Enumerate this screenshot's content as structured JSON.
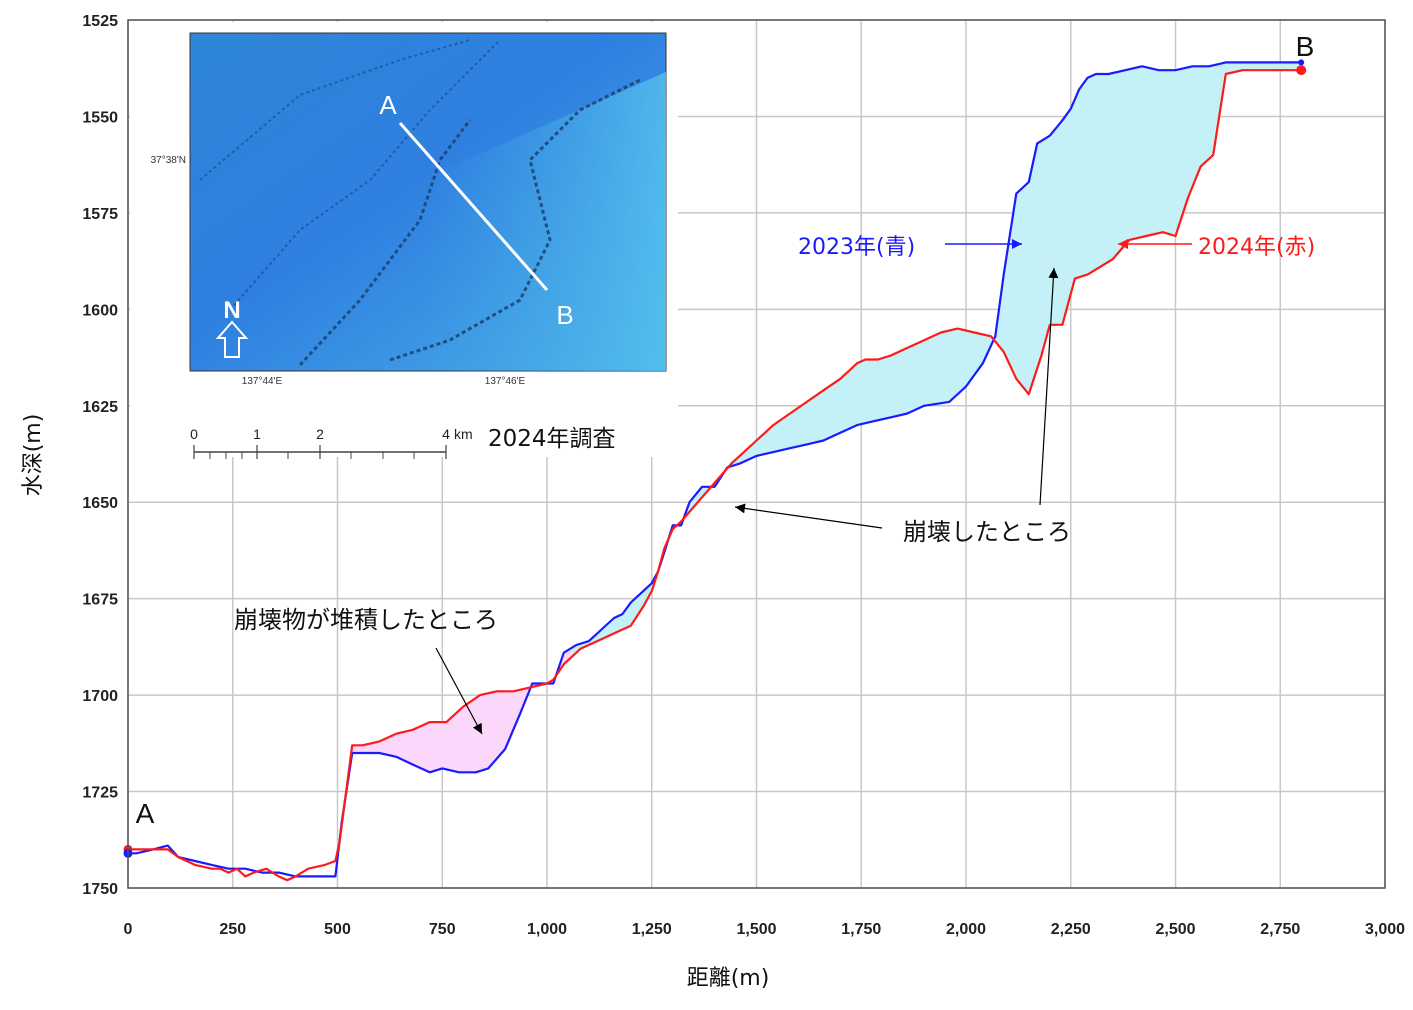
{
  "chart_data": {
    "type": "line",
    "xlabel": "距離(m)",
    "ylabel": "水深(m)",
    "xlim": [
      0,
      3000
    ],
    "ylim": [
      1750,
      1525
    ],
    "y_inverted": true,
    "grid": true,
    "x_ticks": [
      "0",
      "250",
      "500",
      "750",
      "1,000",
      "1,250",
      "1,500",
      "1,750",
      "2,000",
      "2,250",
      "2,500",
      "2,750",
      "3,000"
    ],
    "x_tick_values": [
      0,
      250,
      500,
      750,
      1000,
      1250,
      1500,
      1750,
      2000,
      2250,
      2500,
      2750,
      3000
    ],
    "y_ticks": [
      "1525",
      "1550",
      "1575",
      "1600",
      "1625",
      "1650",
      "1675",
      "1700",
      "1725",
      "1750"
    ],
    "y_tick_values": [
      1525,
      1550,
      1575,
      1600,
      1625,
      1650,
      1675,
      1700,
      1725,
      1750
    ],
    "series": [
      {
        "name": "2023年(青)",
        "color": "#1a1aff",
        "x": [
          0,
          20,
          60,
          95,
          120,
          160,
          200,
          240,
          280,
          320,
          360,
          400,
          440,
          480,
          495,
          510,
          535,
          600,
          640,
          680,
          720,
          750,
          790,
          830,
          860,
          900,
          935,
          965,
          1000,
          1015,
          1040,
          1070,
          1100,
          1130,
          1160,
          1180,
          1200,
          1220,
          1250,
          1265,
          1280,
          1300,
          1320,
          1340,
          1370,
          1400,
          1430,
          1460,
          1500,
          1540,
          1580,
          1620,
          1660,
          1700,
          1740,
          1780,
          1820,
          1860,
          1900,
          1960,
          2000,
          2040,
          2070,
          2090,
          2120,
          2150,
          2170,
          2200,
          2230,
          2250,
          2270,
          2290,
          2310,
          2340,
          2380,
          2420,
          2460,
          2500,
          2540,
          2580,
          2620,
          2700,
          2760,
          2800
        ],
        "y": [
          1741,
          1741,
          1740,
          1739,
          1742,
          1743,
          1744,
          1745,
          1745,
          1746,
          1746,
          1747,
          1747,
          1747,
          1747,
          1733,
          1715,
          1715,
          1716,
          1718,
          1720,
          1719,
          1720,
          1720,
          1719,
          1714,
          1705,
          1697,
          1697,
          1697,
          1689,
          1687,
          1686,
          1683,
          1680,
          1679,
          1676,
          1674,
          1671,
          1668,
          1663,
          1656,
          1656,
          1650,
          1646,
          1646,
          1641,
          1640,
          1638,
          1637,
          1636,
          1635,
          1634,
          1632,
          1630,
          1629,
          1628,
          1627,
          1625,
          1624,
          1620,
          1614,
          1607,
          1591,
          1570,
          1567,
          1557,
          1555,
          1551,
          1548,
          1543,
          1540,
          1539,
          1539,
          1538,
          1537,
          1538,
          1538,
          1537,
          1537,
          1536,
          1536,
          1536,
          1536
        ]
      },
      {
        "name": "2024年(赤)",
        "color": "#ff1a1a",
        "x": [
          0,
          20,
          60,
          95,
          120,
          160,
          200,
          220,
          240,
          260,
          280,
          300,
          330,
          360,
          380,
          400,
          430,
          470,
          495,
          505,
          535,
          560,
          600,
          640,
          680,
          720,
          760,
          800,
          840,
          880,
          920,
          960,
          1000,
          1015,
          1040,
          1080,
          1120,
          1160,
          1200,
          1230,
          1250,
          1265,
          1280,
          1300,
          1320,
          1360,
          1400,
          1440,
          1470,
          1500,
          1540,
          1580,
          1620,
          1660,
          1700,
          1740,
          1760,
          1790,
          1820,
          1860,
          1900,
          1940,
          1980,
          2020,
          2060,
          2090,
          2120,
          2150,
          2180,
          2200,
          2230,
          2260,
          2290,
          2320,
          2350,
          2390,
          2430,
          2470,
          2500,
          2530,
          2560,
          2590,
          2620,
          2660,
          2700,
          2740,
          2800
        ],
        "y": [
          1740,
          1740,
          1740,
          1740,
          1742,
          1744,
          1745,
          1745,
          1746,
          1745,
          1747,
          1746,
          1745,
          1747,
          1748,
          1747,
          1745,
          1744,
          1743,
          1738,
          1713,
          1713,
          1712,
          1710,
          1709,
          1707,
          1707,
          1703,
          1700,
          1699,
          1699,
          1698,
          1697,
          1696,
          1692,
          1688,
          1686,
          1684,
          1682,
          1677,
          1673,
          1668,
          1662,
          1657,
          1655,
          1650,
          1645,
          1640,
          1637,
          1634,
          1630,
          1627,
          1624,
          1621,
          1618,
          1614,
          1613,
          1613,
          1612,
          1610,
          1608,
          1606,
          1605,
          1606,
          1607,
          1611,
          1618,
          1622,
          1612,
          1604,
          1604,
          1592,
          1591,
          1589,
          1587,
          1582,
          1581,
          1580,
          1581,
          1571,
          1563,
          1560,
          1539,
          1538,
          1538,
          1538,
          1538
        ]
      }
    ],
    "fills": [
      {
        "label": "崩壊物が堆積したところ",
        "color": "#fcd7fc",
        "x_range": [
          505,
          1060
        ]
      },
      {
        "label": "崩壊したところ",
        "color": "#c4f0f7",
        "x_range": [
          1060,
          2800
        ]
      }
    ],
    "endpoints": {
      "start": "A",
      "end": "B"
    },
    "annotations": {
      "year_2023": "2023年(青)",
      "year_2024": "2024年(赤)",
      "collapse": "崩壊したところ",
      "deposit": "崩壊物が堆積したところ"
    }
  },
  "inset_map": {
    "label_a": "A",
    "label_b": "B",
    "north": "N",
    "lat_label": "37°38'N",
    "lon_labels": [
      "137°44'E",
      "137°46'E"
    ],
    "scale_ticks": [
      "0",
      "1",
      "2",
      "4"
    ],
    "scale_unit": "km",
    "survey_label": "2024年調査"
  }
}
